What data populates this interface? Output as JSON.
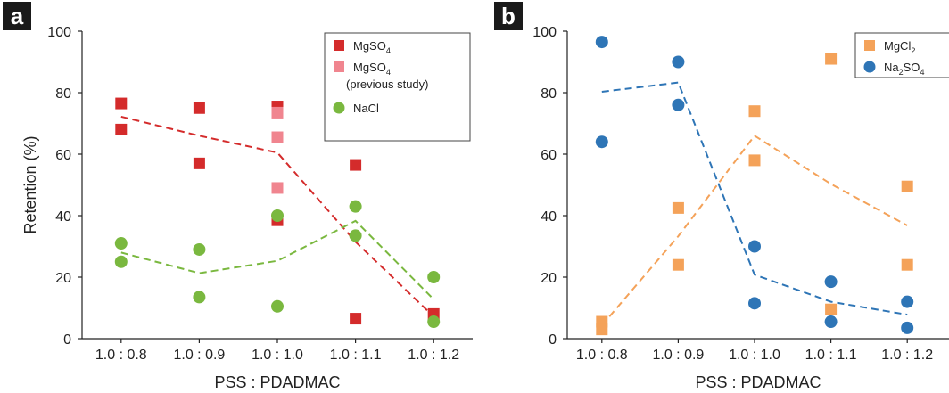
{
  "chart_data": [
    {
      "panel": "a",
      "type": "scatter",
      "categories": [
        "1.0 : 0.8",
        "1.0 : 0.9",
        "1.0 : 1.0",
        "1.0 : 1.1",
        "1.0 : 1.2"
      ],
      "xlabel": "PSS : PDADMAC",
      "ylabel": "Retention (%)",
      "ylim": [
        0,
        100
      ],
      "yticks": [
        "0",
        "20",
        "40",
        "60",
        "80",
        "100"
      ],
      "legend_position": "top-right",
      "series": [
        {
          "name": "MgSO4",
          "name_main": "MgSO",
          "name_sub": "4",
          "color": "#d42b2b",
          "marker": "square",
          "points": [
            [
              0,
              76.5
            ],
            [
              0,
              68
            ],
            [
              1,
              75
            ],
            [
              1,
              57
            ],
            [
              2,
              75.5
            ],
            [
              2,
              38.5
            ],
            [
              3,
              56.5
            ],
            [
              3,
              6.5
            ],
            [
              4,
              8
            ]
          ],
          "trend": [
            72.2,
            66,
            60.5,
            31.5,
            7.2
          ]
        },
        {
          "name": "MgSO4 (previous study)",
          "name_main": "MgSO",
          "name_sub": "4",
          "name_note": "(previous study)",
          "color": "#f0858f",
          "marker": "square",
          "points": [
            [
              2,
              73.5
            ],
            [
              2,
              65.5
            ],
            [
              2,
              49
            ]
          ]
        },
        {
          "name": "NaCl",
          "color": "#7ab83f",
          "marker": "circle",
          "points": [
            [
              0,
              31
            ],
            [
              0,
              25
            ],
            [
              1,
              29
            ],
            [
              1,
              13.5
            ],
            [
              2,
              40
            ],
            [
              2,
              10.5
            ],
            [
              3,
              43
            ],
            [
              3,
              33.5
            ],
            [
              4,
              20
            ],
            [
              4,
              5.5
            ]
          ],
          "trend": [
            28,
            21.3,
            25.3,
            38.3,
            12.8
          ]
        }
      ]
    },
    {
      "panel": "b",
      "type": "scatter",
      "categories": [
        "1.0 : 0.8",
        "1.0 : 0.9",
        "1.0 : 1.0",
        "1.0 : 1.1",
        "1.0 : 1.2"
      ],
      "xlabel": "PSS : PDADMAC",
      "ylabel": "",
      "ylim": [
        0,
        100
      ],
      "yticks": [
        "0",
        "20",
        "40",
        "60",
        "80",
        "100"
      ],
      "legend_position": "top-right",
      "series": [
        {
          "name": "MgCl2",
          "name_main": "MgCl",
          "name_sub": "2",
          "color": "#f4a259",
          "marker": "square",
          "points": [
            [
              0,
              5.5
            ],
            [
              0,
              3
            ],
            [
              1,
              42.5
            ],
            [
              1,
              24
            ],
            [
              2,
              74
            ],
            [
              2,
              58
            ],
            [
              3,
              91
            ],
            [
              3,
              9.5
            ],
            [
              4,
              49.5
            ],
            [
              4,
              24
            ]
          ],
          "trend": [
            4.3,
            33.3,
            66,
            50.3,
            36.8
          ]
        },
        {
          "name": "Na2SO4",
          "name_main": "Na",
          "name_sub": "2",
          "name_tail": "SO",
          "name_sub2": "4",
          "color": "#2e75b6",
          "marker": "circle",
          "points": [
            [
              0,
              96.5
            ],
            [
              0,
              64
            ],
            [
              1,
              90
            ],
            [
              1,
              76
            ],
            [
              2,
              30
            ],
            [
              2,
              11.5
            ],
            [
              3,
              18.5
            ],
            [
              3,
              5.5
            ],
            [
              4,
              12
            ],
            [
              4,
              3.5
            ]
          ],
          "trend": [
            80.3,
            83.3,
            20.8,
            12,
            7.8
          ]
        }
      ]
    }
  ]
}
